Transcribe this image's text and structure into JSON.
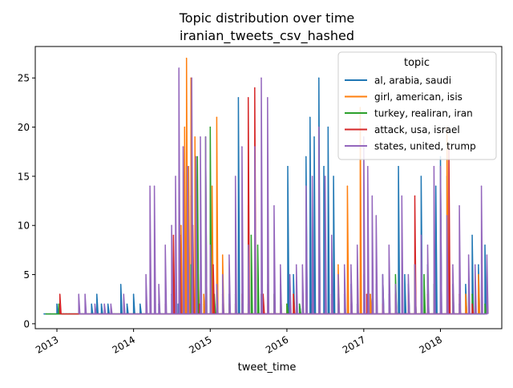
{
  "chart_data": {
    "type": "line",
    "title": "Topic distribution over time",
    "subtitle": "iranian_tweets_csv_hashed",
    "xlabel": "tweet_time",
    "ylabel": "",
    "xlim": [
      "2012-09-20",
      "2018-10-20"
    ],
    "ylim": [
      -0.5,
      28.2
    ],
    "xticks": [
      "2013",
      "2014",
      "2015",
      "2016",
      "2017",
      "2018"
    ],
    "xtick_dates": [
      "2013-01-01",
      "2014-01-01",
      "2015-01-01",
      "2016-01-01",
      "2017-01-01",
      "2018-01-01"
    ],
    "yticks": [
      0,
      5,
      10,
      15,
      20,
      25
    ],
    "legend": {
      "title": "topic",
      "placement": "upper right"
    },
    "series": [
      {
        "name": "al, arabia, saudi",
        "color": "#1f77b4",
        "points": [
          [
            "2012-11-01",
            1
          ],
          [
            "2012-12-01",
            1
          ],
          [
            "2013-01-01",
            2
          ],
          [
            "2013-02-01",
            1
          ],
          [
            "2013-03-01",
            1
          ],
          [
            "2013-05-01",
            1
          ],
          [
            "2013-06-15",
            2
          ],
          [
            "2013-07-10",
            3
          ],
          [
            "2013-08-01",
            2
          ],
          [
            "2013-09-01",
            2
          ],
          [
            "2013-10-01",
            1
          ],
          [
            "2013-11-01",
            4
          ],
          [
            "2013-12-01",
            2
          ],
          [
            "2014-01-01",
            3
          ],
          [
            "2014-02-01",
            2
          ],
          [
            "2014-03-01",
            1
          ],
          [
            "2014-05-01",
            2
          ],
          [
            "2014-07-01",
            3
          ],
          [
            "2014-08-01",
            2
          ],
          [
            "2014-09-01",
            6
          ],
          [
            "2014-10-01",
            13
          ],
          [
            "2014-11-01",
            5
          ],
          [
            "2014-12-01",
            2
          ],
          [
            "2015-01-01",
            3
          ],
          [
            "2015-02-01",
            2
          ],
          [
            "2015-04-01",
            3
          ],
          [
            "2015-05-15",
            23
          ],
          [
            "2015-06-01",
            3
          ],
          [
            "2015-07-01",
            2
          ],
          [
            "2015-08-01",
            5
          ],
          [
            "2015-09-01",
            3
          ],
          [
            "2015-10-01",
            4
          ],
          [
            "2015-11-01",
            2
          ],
          [
            "2015-12-01",
            4
          ],
          [
            "2016-01-05",
            16
          ],
          [
            "2016-02-01",
            5
          ],
          [
            "2016-03-01",
            2
          ],
          [
            "2016-04-01",
            17
          ],
          [
            "2016-04-20",
            21
          ],
          [
            "2016-05-10",
            19
          ],
          [
            "2016-06-01",
            25
          ],
          [
            "2016-06-25",
            16
          ],
          [
            "2016-07-15",
            20
          ],
          [
            "2016-08-10",
            15
          ],
          [
            "2016-09-01",
            3
          ],
          [
            "2016-10-01",
            3
          ],
          [
            "2016-11-01",
            4
          ],
          [
            "2016-12-01",
            2
          ],
          [
            "2017-01-01",
            5
          ],
          [
            "2017-02-01",
            3
          ],
          [
            "2017-03-01",
            4
          ],
          [
            "2017-04-01",
            5
          ],
          [
            "2017-05-01",
            3
          ],
          [
            "2017-06-15",
            16
          ],
          [
            "2017-07-15",
            5
          ],
          [
            "2017-08-01",
            4
          ],
          [
            "2017-09-01",
            6
          ],
          [
            "2017-10-01",
            15
          ],
          [
            "2017-11-01",
            6
          ],
          [
            "2017-12-10",
            14
          ],
          [
            "2018-01-01",
            17
          ],
          [
            "2018-02-01",
            15
          ],
          [
            "2018-03-01",
            4
          ],
          [
            "2018-04-01",
            2
          ],
          [
            "2018-05-01",
            4
          ],
          [
            "2018-06-01",
            9
          ],
          [
            "2018-07-01",
            6
          ],
          [
            "2018-08-01",
            8
          ]
        ]
      },
      {
        "name": "girl, american, isis",
        "color": "#ff7f0e",
        "points": [
          [
            "2014-08-15",
            10
          ],
          [
            "2014-09-01",
            20
          ],
          [
            "2014-09-10",
            27
          ],
          [
            "2014-09-20",
            16
          ],
          [
            "2014-10-01",
            25
          ],
          [
            "2014-10-20",
            19
          ],
          [
            "2014-11-05",
            5
          ],
          [
            "2014-12-01",
            3
          ],
          [
            "2015-01-10",
            14
          ],
          [
            "2015-02-01",
            21
          ],
          [
            "2015-03-01",
            7
          ],
          [
            "2015-04-01",
            2
          ],
          [
            "2015-05-01",
            2
          ],
          [
            "2015-06-01",
            3
          ],
          [
            "2015-07-01",
            12
          ],
          [
            "2015-08-01",
            16
          ],
          [
            "2015-09-01",
            3
          ],
          [
            "2015-10-01",
            2
          ],
          [
            "2015-11-01",
            3
          ],
          [
            "2015-12-01",
            2
          ],
          [
            "2016-01-01",
            2
          ],
          [
            "2016-02-01",
            3
          ],
          [
            "2016-04-01",
            3
          ],
          [
            "2016-06-01",
            4
          ],
          [
            "2016-08-01",
            3
          ],
          [
            "2016-09-01",
            6
          ],
          [
            "2016-10-15",
            14
          ],
          [
            "2016-11-01",
            3
          ],
          [
            "2016-12-15",
            22
          ],
          [
            "2017-02-01",
            3
          ],
          [
            "2017-04-01",
            2
          ],
          [
            "2017-06-01",
            3
          ],
          [
            "2017-08-01",
            3
          ],
          [
            "2017-10-01",
            2
          ],
          [
            "2017-12-01",
            3
          ],
          [
            "2018-02-01",
            20
          ],
          [
            "2018-03-01",
            3
          ],
          [
            "2018-05-01",
            3
          ],
          [
            "2018-07-01",
            5
          ]
        ]
      },
      {
        "name": "turkey, realiran, iran",
        "color": "#2ca02c",
        "points": [
          [
            "2012-11-10",
            1
          ],
          [
            "2013-01-10",
            2
          ],
          [
            "2013-02-15",
            1
          ],
          [
            "2014-10-01",
            6
          ],
          [
            "2014-11-01",
            17
          ],
          [
            "2014-12-10",
            19
          ],
          [
            "2015-01-01",
            20
          ],
          [
            "2015-01-20",
            3
          ],
          [
            "2015-02-01",
            2
          ],
          [
            "2015-03-01",
            2
          ],
          [
            "2015-04-01",
            2
          ],
          [
            "2015-05-01",
            3
          ],
          [
            "2015-06-01",
            2
          ],
          [
            "2015-07-15",
            9
          ],
          [
            "2015-08-15",
            8
          ],
          [
            "2015-09-01",
            3
          ],
          [
            "2015-10-01",
            2
          ],
          [
            "2015-11-01",
            3
          ],
          [
            "2015-12-01",
            2
          ],
          [
            "2016-01-01",
            2
          ],
          [
            "2016-03-01",
            2
          ],
          [
            "2016-06-01",
            2
          ],
          [
            "2016-09-01",
            2
          ],
          [
            "2016-12-01",
            2
          ],
          [
            "2017-03-01",
            3
          ],
          [
            "2017-06-01",
            5
          ],
          [
            "2017-09-01",
            6
          ],
          [
            "2017-10-15",
            5
          ],
          [
            "2017-12-01",
            4
          ],
          [
            "2018-03-01",
            3
          ],
          [
            "2018-06-01",
            3
          ],
          [
            "2018-08-01",
            2
          ]
        ]
      },
      {
        "name": "attack, usa, israel",
        "color": "#d62728",
        "points": [
          [
            "2013-01-15",
            3
          ],
          [
            "2014-06-01",
            2
          ],
          [
            "2014-07-10",
            9
          ],
          [
            "2014-08-10",
            9
          ],
          [
            "2014-10-10",
            10
          ],
          [
            "2014-11-10",
            2
          ],
          [
            "2015-01-15",
            6
          ],
          [
            "2015-03-01",
            3
          ],
          [
            "2015-05-01",
            2
          ],
          [
            "2015-07-01",
            23
          ],
          [
            "2015-08-01",
            24
          ],
          [
            "2015-09-10",
            3
          ],
          [
            "2015-10-01",
            2
          ],
          [
            "2015-12-01",
            2
          ],
          [
            "2016-02-01",
            3
          ],
          [
            "2016-05-01",
            2
          ],
          [
            "2016-08-01",
            3
          ],
          [
            "2016-11-01",
            2
          ],
          [
            "2017-01-15",
            3
          ],
          [
            "2017-04-01",
            2
          ],
          [
            "2017-06-01",
            3
          ],
          [
            "2017-09-01",
            13
          ],
          [
            "2017-11-01",
            3
          ],
          [
            "2018-02-10",
            18
          ],
          [
            "2018-04-01",
            3
          ],
          [
            "2018-06-01",
            2
          ]
        ]
      },
      {
        "name": "states, united, trump",
        "color": "#9467bd",
        "points": [
          [
            "2013-04-15",
            3
          ],
          [
            "2013-05-15",
            3
          ],
          [
            "2013-07-01",
            2
          ],
          [
            "2013-08-15",
            2
          ],
          [
            "2013-09-15",
            2
          ],
          [
            "2013-11-15",
            3
          ],
          [
            "2014-03-01",
            5
          ],
          [
            "2014-03-20",
            14
          ],
          [
            "2014-04-10",
            14
          ],
          [
            "2014-05-01",
            4
          ],
          [
            "2014-06-01",
            8
          ],
          [
            "2014-07-01",
            10
          ],
          [
            "2014-07-20",
            15
          ],
          [
            "2014-08-05",
            26
          ],
          [
            "2014-08-25",
            18
          ],
          [
            "2014-09-15",
            16
          ],
          [
            "2014-10-05",
            25
          ],
          [
            "2014-10-25",
            17
          ],
          [
            "2014-11-15",
            19
          ],
          [
            "2014-12-10",
            19
          ],
          [
            "2015-01-01",
            8
          ],
          [
            "2015-02-01",
            4
          ],
          [
            "2015-03-01",
            5
          ],
          [
            "2015-04-01",
            7
          ],
          [
            "2015-05-01",
            15
          ],
          [
            "2015-06-01",
            18
          ],
          [
            "2015-07-01",
            8
          ],
          [
            "2015-08-01",
            18
          ],
          [
            "2015-09-01",
            25
          ],
          [
            "2015-10-01",
            23
          ],
          [
            "2015-11-01",
            12
          ],
          [
            "2015-12-01",
            6
          ],
          [
            "2016-01-15",
            5
          ],
          [
            "2016-02-15",
            6
          ],
          [
            "2016-03-15",
            6
          ],
          [
            "2016-04-01",
            14
          ],
          [
            "2016-05-01",
            15
          ],
          [
            "2016-06-01",
            20
          ],
          [
            "2016-07-01",
            15
          ],
          [
            "2016-08-01",
            9
          ],
          [
            "2016-09-01",
            5
          ],
          [
            "2016-10-01",
            6
          ],
          [
            "2016-11-01",
            6
          ],
          [
            "2016-12-01",
            8
          ],
          [
            "2017-01-01",
            19
          ],
          [
            "2017-01-20",
            16
          ],
          [
            "2017-02-10",
            13
          ],
          [
            "2017-03-01",
            11
          ],
          [
            "2017-04-01",
            5
          ],
          [
            "2017-05-01",
            8
          ],
          [
            "2017-06-01",
            4
          ],
          [
            "2017-07-01",
            13
          ],
          [
            "2017-08-01",
            5
          ],
          [
            "2017-09-01",
            6
          ],
          [
            "2017-10-01",
            9
          ],
          [
            "2017-11-01",
            8
          ],
          [
            "2017-12-01",
            16
          ],
          [
            "2018-01-01",
            16
          ],
          [
            "2018-02-01",
            11
          ],
          [
            "2018-03-01",
            6
          ],
          [
            "2018-04-01",
            12
          ],
          [
            "2018-05-15",
            7
          ],
          [
            "2018-06-15",
            6
          ],
          [
            "2018-07-15",
            14
          ],
          [
            "2018-08-10",
            7
          ]
        ]
      }
    ]
  }
}
